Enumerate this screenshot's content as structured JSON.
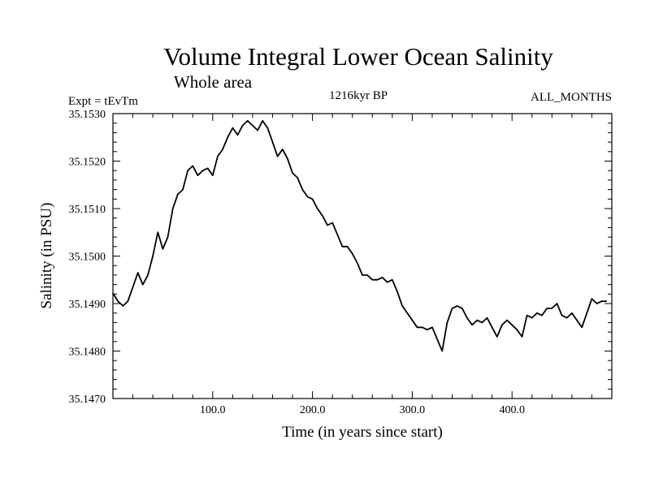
{
  "chart_data": {
    "type": "line",
    "title": "Volume Integral Lower Ocean Salinity",
    "subtitle": "Whole area",
    "left_label": "Expt = tEvTm",
    "center_label": "1216kyr BP",
    "right_label": "ALL_MONTHS",
    "xlabel": "Time (in years since start)",
    "ylabel": "Salinity (in PSU)",
    "xlim": [
      0,
      500
    ],
    "ylim": [
      35.147,
      35.153
    ],
    "xticks": [
      100,
      200,
      300,
      400
    ],
    "xtick_labels": [
      "100.0",
      "200.0",
      "300.0",
      "400.0"
    ],
    "yticks": [
      35.147,
      35.148,
      35.149,
      35.15,
      35.151,
      35.152,
      35.153
    ],
    "ytick_labels": [
      "35.1470",
      "35.1480",
      "35.1490",
      "35.1500",
      "35.1510",
      "35.1520",
      "35.1530"
    ],
    "grid": false,
    "series": [
      {
        "name": "Salinity",
        "x": [
          0,
          5,
          10,
          15,
          20,
          25,
          30,
          35,
          40,
          45,
          50,
          55,
          60,
          65,
          70,
          75,
          80,
          85,
          90,
          95,
          100,
          105,
          110,
          115,
          120,
          125,
          130,
          135,
          140,
          145,
          150,
          155,
          160,
          165,
          170,
          175,
          180,
          185,
          190,
          195,
          200,
          205,
          210,
          215,
          220,
          225,
          230,
          235,
          240,
          245,
          250,
          255,
          260,
          265,
          270,
          275,
          280,
          285,
          290,
          295,
          300,
          305,
          310,
          315,
          320,
          325,
          330,
          335,
          340,
          345,
          350,
          355,
          360,
          365,
          370,
          375,
          380,
          385,
          390,
          395,
          400,
          405,
          410,
          415,
          420,
          425,
          430,
          435,
          440,
          445,
          450,
          455,
          460,
          465,
          470,
          475,
          480,
          485,
          490,
          495
        ],
        "values": [
          35.14922,
          35.14905,
          35.14895,
          35.14905,
          35.14935,
          35.14965,
          35.1494,
          35.1496,
          35.15,
          35.1505,
          35.15015,
          35.1504,
          35.151,
          35.1513,
          35.1514,
          35.1518,
          35.1519,
          35.1517,
          35.1518,
          35.15185,
          35.1517,
          35.1521,
          35.15225,
          35.1525,
          35.1527,
          35.15255,
          35.15275,
          35.15285,
          35.15275,
          35.15265,
          35.15285,
          35.1527,
          35.1524,
          35.1521,
          35.15225,
          35.15205,
          35.15175,
          35.15165,
          35.1514,
          35.15125,
          35.1512,
          35.151,
          35.15085,
          35.15065,
          35.1507,
          35.15045,
          35.1502,
          35.1502,
          35.15005,
          35.14985,
          35.1496,
          35.1496,
          35.1495,
          35.1495,
          35.14955,
          35.14945,
          35.1495,
          35.14925,
          35.14895,
          35.1488,
          35.14865,
          35.1485,
          35.1485,
          35.14845,
          35.1485,
          35.14825,
          35.148,
          35.1486,
          35.1489,
          35.14895,
          35.1489,
          35.1487,
          35.14855,
          35.14865,
          35.1486,
          35.1487,
          35.1485,
          35.1483,
          35.14855,
          35.14865,
          35.14855,
          35.14845,
          35.1483,
          35.14875,
          35.1487,
          35.1488,
          35.14875,
          35.1489,
          35.1489,
          35.149,
          35.14875,
          35.1487,
          35.1488,
          35.14865,
          35.1485,
          35.1488,
          35.1491,
          35.149,
          35.14905,
          35.14905
        ]
      }
    ]
  }
}
